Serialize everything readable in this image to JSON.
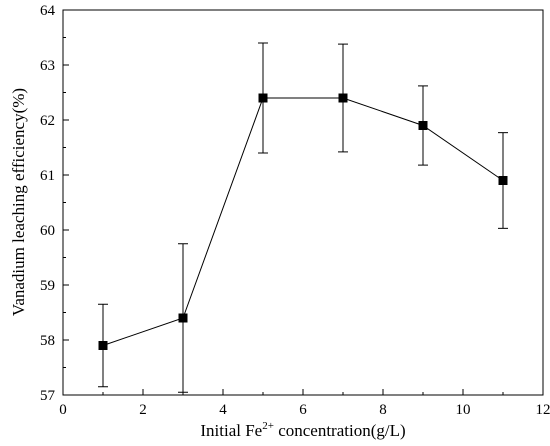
{
  "chart_data": {
    "type": "scatter",
    "xlabel_parts": [
      "Initial Fe",
      "2+",
      " concentration(g/L)"
    ],
    "ylabel": "Vanadium leaching efficiency(%)",
    "xlim": [
      0,
      12
    ],
    "ylim": [
      57,
      64
    ],
    "x_ticks": [
      0,
      2,
      4,
      6,
      8,
      10,
      12
    ],
    "y_ticks": [
      57,
      58,
      59,
      60,
      61,
      62,
      63,
      64
    ],
    "grid": false,
    "legend": "none",
    "marker": "square",
    "line_color": "#000000",
    "series": [
      {
        "x": [
          1,
          3,
          5,
          7,
          9,
          11
        ],
        "y": [
          57.9,
          58.4,
          62.4,
          62.4,
          61.9,
          60.9
        ],
        "err_low": [
          57.15,
          57.05,
          61.4,
          61.42,
          61.18,
          60.03
        ],
        "err_high": [
          58.65,
          59.75,
          63.4,
          63.38,
          62.62,
          61.77
        ]
      }
    ]
  }
}
